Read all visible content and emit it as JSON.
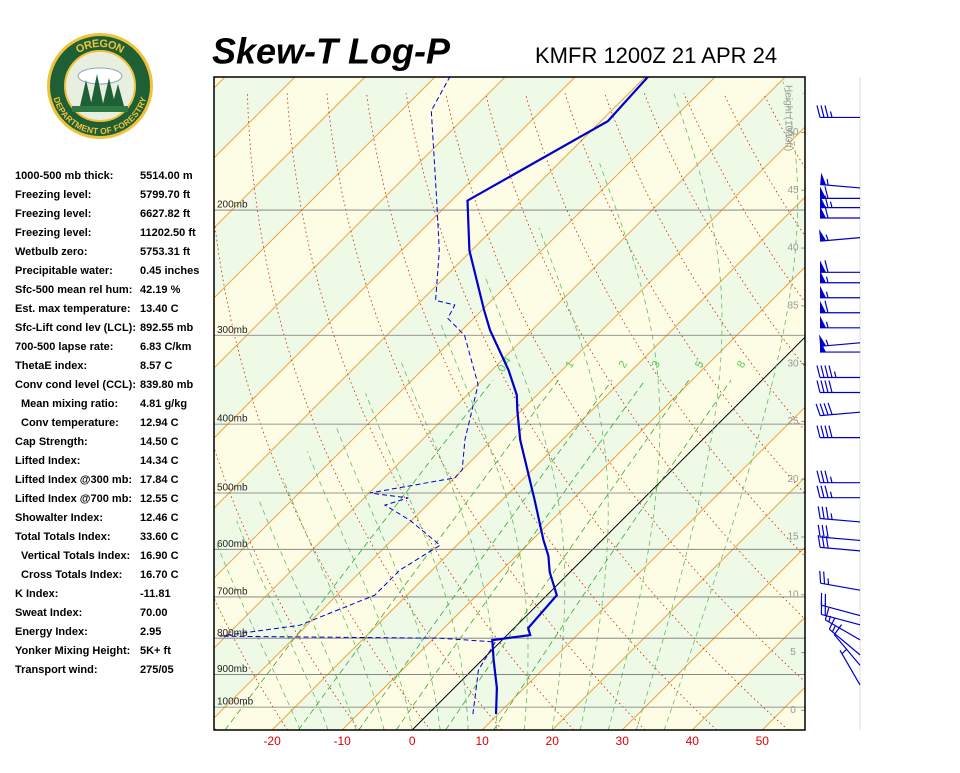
{
  "logo": {
    "top": "OREGON",
    "bottom": "DEPARTMENT OF FORESTRY"
  },
  "stats": [
    {
      "label": "1000-500 mb thick:",
      "value": "5514.00 m"
    },
    {
      "label": "Freezing level:",
      "value": "5799.70 ft"
    },
    {
      "label": "Freezing level:",
      "value": "6627.82 ft"
    },
    {
      "label": "Freezing level:",
      "value": "11202.50 ft"
    },
    {
      "label": "Wetbulb zero:",
      "value": "5753.31 ft"
    },
    {
      "label": "Precipitable water:",
      "value": "0.45 inches"
    },
    {
      "label": "Sfc-500 mean rel hum:",
      "value": "42.19 %"
    },
    {
      "label": "Est. max temperature:",
      "value": "13.40 C"
    },
    {
      "label": "Sfc-Lift cond lev (LCL):",
      "value": "892.55 mb"
    },
    {
      "label": "700-500 lapse rate:",
      "value": "6.83 C/km"
    },
    {
      "label": "ThetaE index:",
      "value": "8.57 C"
    },
    {
      "label": "Conv cond level (CCL):",
      "value": "839.80 mb"
    },
    {
      "label": "Mean mixing ratio:",
      "value": "4.81 g/kg"
    },
    {
      "label": "Conv temperature:",
      "value": "12.94 C"
    },
    {
      "label": "Cap Strength:",
      "value": "14.50 C"
    },
    {
      "label": "Lifted Index:",
      "value": "14.34 C"
    },
    {
      "label": "Lifted Index @300 mb:",
      "value": "17.84 C"
    },
    {
      "label": "Lifted Index @700 mb:",
      "value": "12.55 C"
    },
    {
      "label": "Showalter Index:",
      "value": "12.46 C"
    },
    {
      "label": "Total Totals Index:",
      "value": "33.60 C"
    },
    {
      "label": "Vertical Totals Index:",
      "value": "16.90 C"
    },
    {
      "label": "Cross Totals Index:",
      "value": "16.70 C"
    },
    {
      "label": "K Index:",
      "value": "-11.81"
    },
    {
      "label": "Sweat Index:",
      "value": "70.00"
    },
    {
      "label": "Energy Index:",
      "value": "2.95"
    },
    {
      "label": "Yonker Mixing Height:",
      "value": "5K+ ft"
    },
    {
      "label": "Transport wind:",
      "value": "275/05"
    }
  ],
  "chart_data": {
    "type": "skew-t",
    "title": "Skew-T Log-P",
    "subtitle": "KMFR 1200Z 21 APR 24",
    "xlim": [
      -28.3,
      56.1
    ],
    "xticks": [
      -20,
      -10,
      0,
      10,
      20,
      30,
      40,
      50
    ],
    "ylim": [
      1077,
      130
    ],
    "log_y": true,
    "yticks": [
      {
        "value": 1000,
        "label": "1000mb"
      },
      {
        "value": 900,
        "label": "900mb"
      },
      {
        "value": 800,
        "label": "800mb"
      },
      {
        "value": 700,
        "label": "700mb"
      },
      {
        "value": 600,
        "label": "600mb"
      },
      {
        "value": 500,
        "label": "500mb"
      },
      {
        "value": 400,
        "label": "400mb"
      },
      {
        "value": 300,
        "label": "300mb"
      },
      {
        "value": 200,
        "label": "200mb"
      }
    ],
    "height_label": "Height (1000ft)",
    "hlim": [
      -1.7,
      54.8
    ],
    "hticks": [
      0,
      5,
      10,
      15,
      20,
      25,
      30,
      35,
      40,
      45,
      50
    ],
    "mixing_ratio": [
      0.4,
      1,
      2,
      3,
      5,
      8
    ],
    "series": [
      {
        "color": "#0000cc",
        "style": "solid",
        "pressure": [
          1023,
          940,
          858,
          805,
          792,
          774,
          696,
          646,
          613,
          582,
          512,
          421,
          382,
          364,
          336,
          295,
          277,
          228,
          194,
          150,
          130
        ],
        "values": [
          9.7,
          6.1,
          1.6,
          -1.4,
          3.3,
          2.0,
          1.4,
          -2.9,
          -5.4,
          -8.4,
          -15.3,
          -26.0,
          -30.7,
          -32.9,
          -37.6,
          -46.0,
          -49.6,
          -60.3,
          -67.7,
          -59.0,
          -59.6
        ]
      },
      {
        "color": "#0000cc",
        "style": "dashed",
        "pressure": [
          1023,
          946,
          887,
          810,
          800,
          795,
          767,
          696,
          642,
          592,
          546,
          520,
          508,
          500,
          476,
          464,
          421,
          352,
          300,
          284,
          272,
          268,
          228,
          194,
          145,
          130
        ],
        "values": [
          6.4,
          3.4,
          0.9,
          -0.7,
          -9.1,
          -40.9,
          -31.0,
          -24.6,
          -24.6,
          -22.4,
          -30.3,
          -36.0,
          -33.7,
          -39.9,
          -29.9,
          -30.0,
          -33.9,
          -39.9,
          -48.9,
          -53.7,
          -54.6,
          -58.0,
          -64.6,
          -72.1,
          -85.7,
          -87.9
        ]
      }
    ],
    "wind": {
      "color": "#0000cc",
      "height": [
        51.3,
        45.2,
        44.3,
        43.5,
        42.6,
        40.9,
        37.9,
        37.0,
        35.7,
        34.4,
        33.1,
        31.8,
        31.0,
        28.8,
        27.5,
        25.8,
        23.6,
        19.7,
        18.4,
        16.3,
        14.7,
        13.8,
        10.4,
        8.2,
        7.4,
        6.1,
        4.8,
        3.9,
        2.2
      ],
      "speed": [
        35,
        55,
        60,
        65,
        60,
        55,
        60,
        55,
        55,
        60,
        55,
        55,
        50,
        45,
        40,
        40,
        40,
        35,
        35,
        35,
        30,
        30,
        25,
        20,
        20,
        15,
        15,
        10,
        5
      ],
      "direction": [
        270,
        275,
        270,
        270,
        270,
        265,
        270,
        270,
        270,
        270,
        270,
        265,
        270,
        270,
        270,
        265,
        270,
        270,
        270,
        275,
        275,
        275,
        280,
        285,
        285,
        300,
        310,
        320,
        330
      ]
    }
  }
}
